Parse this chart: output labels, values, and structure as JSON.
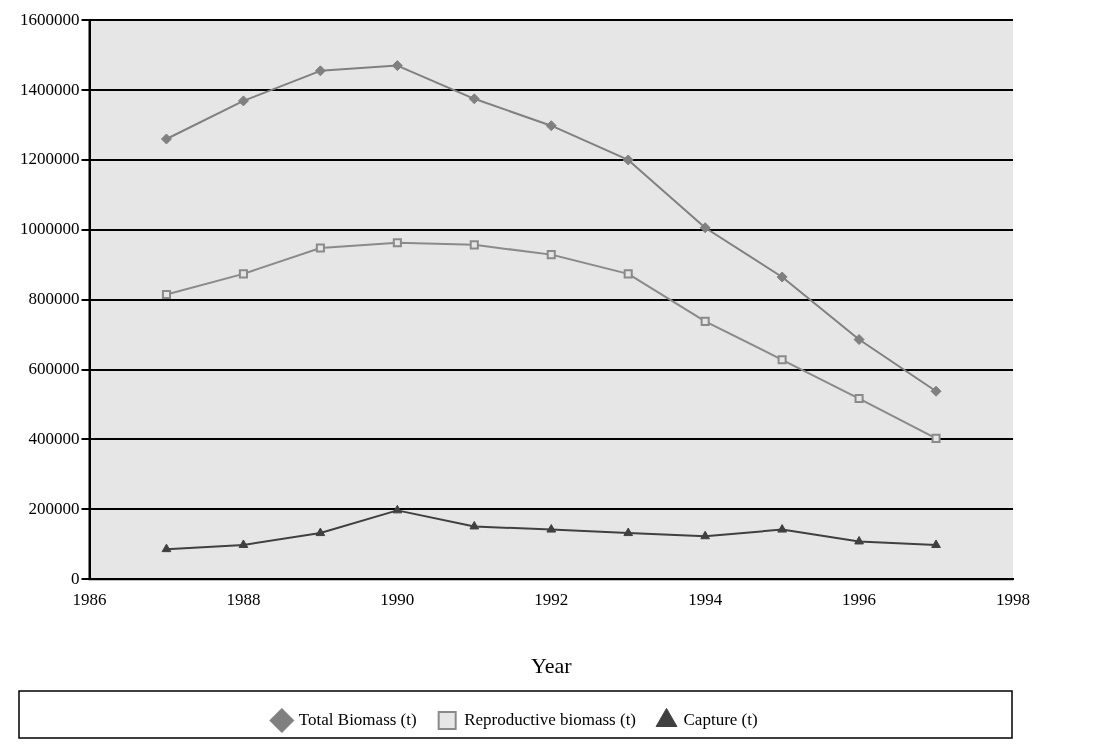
{
  "chart_data": {
    "type": "line",
    "xlabel": "Year",
    "x": [
      1987,
      1988,
      1989,
      1990,
      1991,
      1992,
      1993,
      1994,
      1995,
      1996,
      1997
    ],
    "series": [
      {
        "name": "Total Biomass (t)",
        "color": "#808080",
        "marker": "diamond",
        "values": [
          1260000,
          1369000,
          1455000,
          1470000,
          1375000,
          1298000,
          1200000,
          1006000,
          865000,
          686000,
          538000
        ]
      },
      {
        "name": "Reproductive biomass (t)",
        "color": "#8a8a8a",
        "marker": "square",
        "values": [
          815000,
          874000,
          948000,
          963000,
          957000,
          929000,
          874000,
          738000,
          628000,
          517000,
          403000
        ]
      },
      {
        "name": "Capture (t)",
        "color": "#404040",
        "marker": "triangle",
        "values": [
          86000,
          98000,
          132000,
          197000,
          151000,
          142000,
          132000,
          123000,
          142000,
          108000,
          98000
        ]
      }
    ],
    "xlim": [
      1986,
      1998
    ],
    "xticks": [
      1986,
      1988,
      1990,
      1992,
      1994,
      1996,
      1998
    ],
    "ylim": [
      0,
      1600000
    ],
    "yticks": [
      0,
      200000,
      400000,
      600000,
      800000,
      1000000,
      1200000,
      1400000,
      1600000
    ],
    "grid": "y",
    "legend": "bottom",
    "line_style": "solid"
  }
}
